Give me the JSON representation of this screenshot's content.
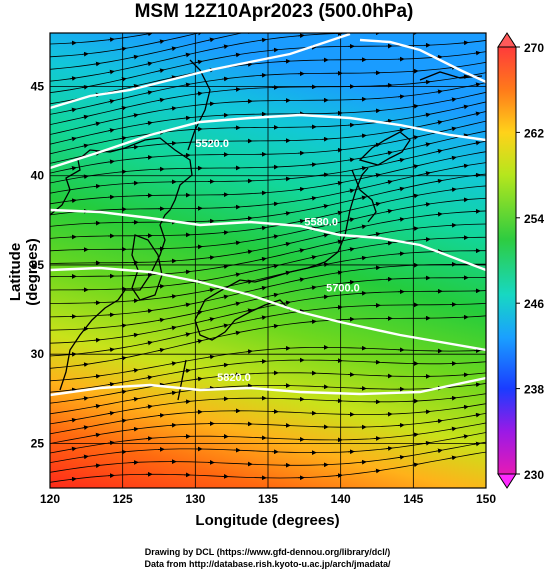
{
  "title": "MSM 12Z10Apr2023 (500.0hPa)",
  "x_axis": {
    "label": "Longitude (degrees)",
    "range": [
      120,
      150
    ],
    "ticks": [
      120,
      125,
      130,
      135,
      140,
      145,
      150
    ]
  },
  "y_axis": {
    "label": "Latitude  (degrees)",
    "range": [
      22.5,
      48
    ],
    "ticks": [
      25,
      30,
      35,
      40,
      45
    ]
  },
  "colorbar": {
    "range": [
      230,
      270
    ],
    "tick_labels": [
      "270",
      "262",
      "254",
      "246",
      "238",
      "230"
    ],
    "colors": [
      "#ff3b3b",
      "#ff7a1a",
      "#ffd21a",
      "#b5e61d",
      "#2ecc40",
      "#17d8c2",
      "#1aa0ff",
      "#1a3cff",
      "#9a1ae6",
      "#e61ab5"
    ]
  },
  "contours": [
    {
      "label": "5520.0",
      "lon": 130.0,
      "lat": 41.6
    },
    {
      "label": "5580.0",
      "lon": 137.5,
      "lat": 37.2
    },
    {
      "label": "5700.0",
      "lon": 139.0,
      "lat": 33.5
    },
    {
      "label": "5820.0",
      "lon": 131.5,
      "lat": 28.5
    }
  ],
  "credits": {
    "line1": "Drawing by DCL (https://www.gfd-dennou.org/library/dcl/)",
    "line2": "Data from http://database.rish.kyoto-u.ac.jp/arch/jmadata/"
  }
}
